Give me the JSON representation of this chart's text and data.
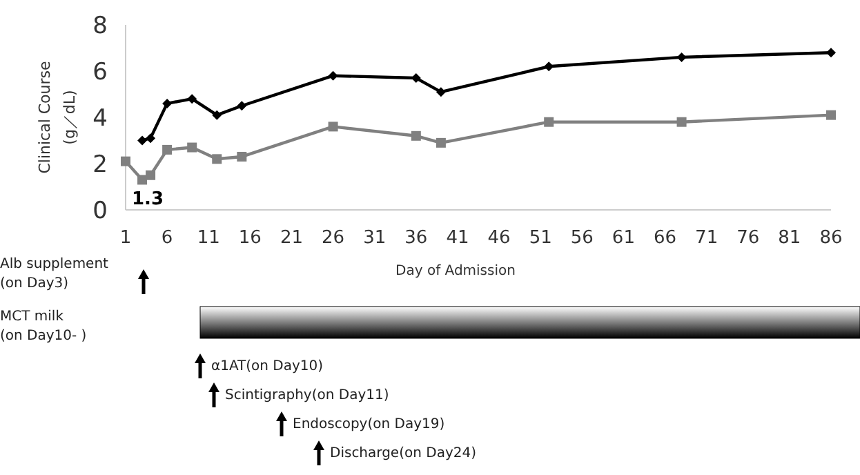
{
  "chart_data": {
    "type": "line",
    "xlabel": "Day of Admission",
    "ylabel": "Clinical Course\n(g／dL)",
    "xlim": [
      1,
      86
    ],
    "xticks": [
      1,
      6,
      11,
      16,
      21,
      26,
      31,
      36,
      41,
      46,
      51,
      56,
      61,
      66,
      71,
      76,
      81,
      86
    ],
    "ylim": [
      0,
      8
    ],
    "yticks": [
      0,
      2,
      4,
      6,
      8
    ],
    "grid": false,
    "series": [
      {
        "color": "#000000",
        "marker": "diamond",
        "x": [
          3,
          4,
          6,
          9,
          12,
          15,
          26,
          36,
          39,
          52,
          68,
          86
        ],
        "values": [
          3.0,
          3.1,
          4.6,
          4.8,
          4.1,
          4.5,
          5.8,
          5.7,
          5.1,
          6.2,
          6.6,
          6.8
        ]
      },
      {
        "color": "#808080",
        "marker": "square",
        "x": [
          1,
          3,
          4,
          6,
          9,
          12,
          15,
          26,
          36,
          39,
          52,
          68,
          86
        ],
        "values": [
          2.1,
          1.3,
          1.5,
          2.6,
          2.7,
          2.2,
          2.3,
          3.6,
          3.2,
          2.9,
          3.8,
          3.8,
          4.1
        ],
        "value_labels": [
          null,
          "1.3",
          null,
          null,
          null,
          null,
          null,
          null,
          null,
          null,
          null,
          null,
          null
        ]
      }
    ],
    "annotations": [
      "Alb supplement\n(on Day3)",
      "MCT milk\n(on Day10‐ )",
      "α1AT(on Day10)",
      "Scintigraphy(on Day11)",
      "Endoscopy(on Day19)",
      "Discharge(on Day24)"
    ]
  }
}
